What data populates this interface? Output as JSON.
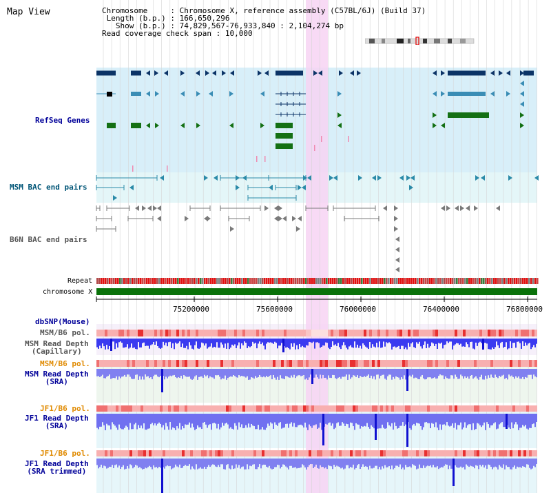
{
  "title": "Map View",
  "info": {
    "chromosome_label": "Chromosome",
    "chromosome_value": "Chromosome X, reference assembly (C57BL/6J) (Build 37)",
    "length_label": "Length (b.p.)",
    "length_value": "166,650,296",
    "show_label": "Show (b.p.)",
    "show_value": "74,829,567-76,933,840 : 2,104,274 bp",
    "span_label": "Read coverage check span",
    "span_value": "10,000"
  },
  "tracks": {
    "refseq": "RefSeq Genes",
    "msm_bac": "MSM BAC end pairs",
    "b6n_bac": "B6N BAC end pairs",
    "repeat": "Repeat",
    "chromosome": "chromosome X",
    "dbsnp": "dbSNP(Mouse)",
    "msm_pol1": "MSM/B6 pol.",
    "msm_depth_cap": "MSM Read Depth\n(Capillary)",
    "msm_pol2": "MSM/B6 pol.",
    "msm_depth_sra": "MSM Read Depth\n(SRA)",
    "jf1_pol1": "JF1/B6 pol.",
    "jf1_depth_sra": "JF1 Read Depth\n(SRA)",
    "jf1_pol2": "JF1/B6 pol.",
    "jf1_depth_trim": "JF1 Read Depth\n(SRA trimmed)"
  },
  "axis_ticks": [
    "75200000",
    "75600000",
    "76000000",
    "76400000",
    "76800000"
  ],
  "colors": {
    "highlight": "#f7d4f3",
    "refseq_bg": "#d8eff9",
    "msm_bg": "#e4f6f8",
    "gene_dark": "#0b3366",
    "gene_mid": "#3a8db5",
    "gene_green": "#147014",
    "chromosome_bar": "#0a720a"
  }
}
